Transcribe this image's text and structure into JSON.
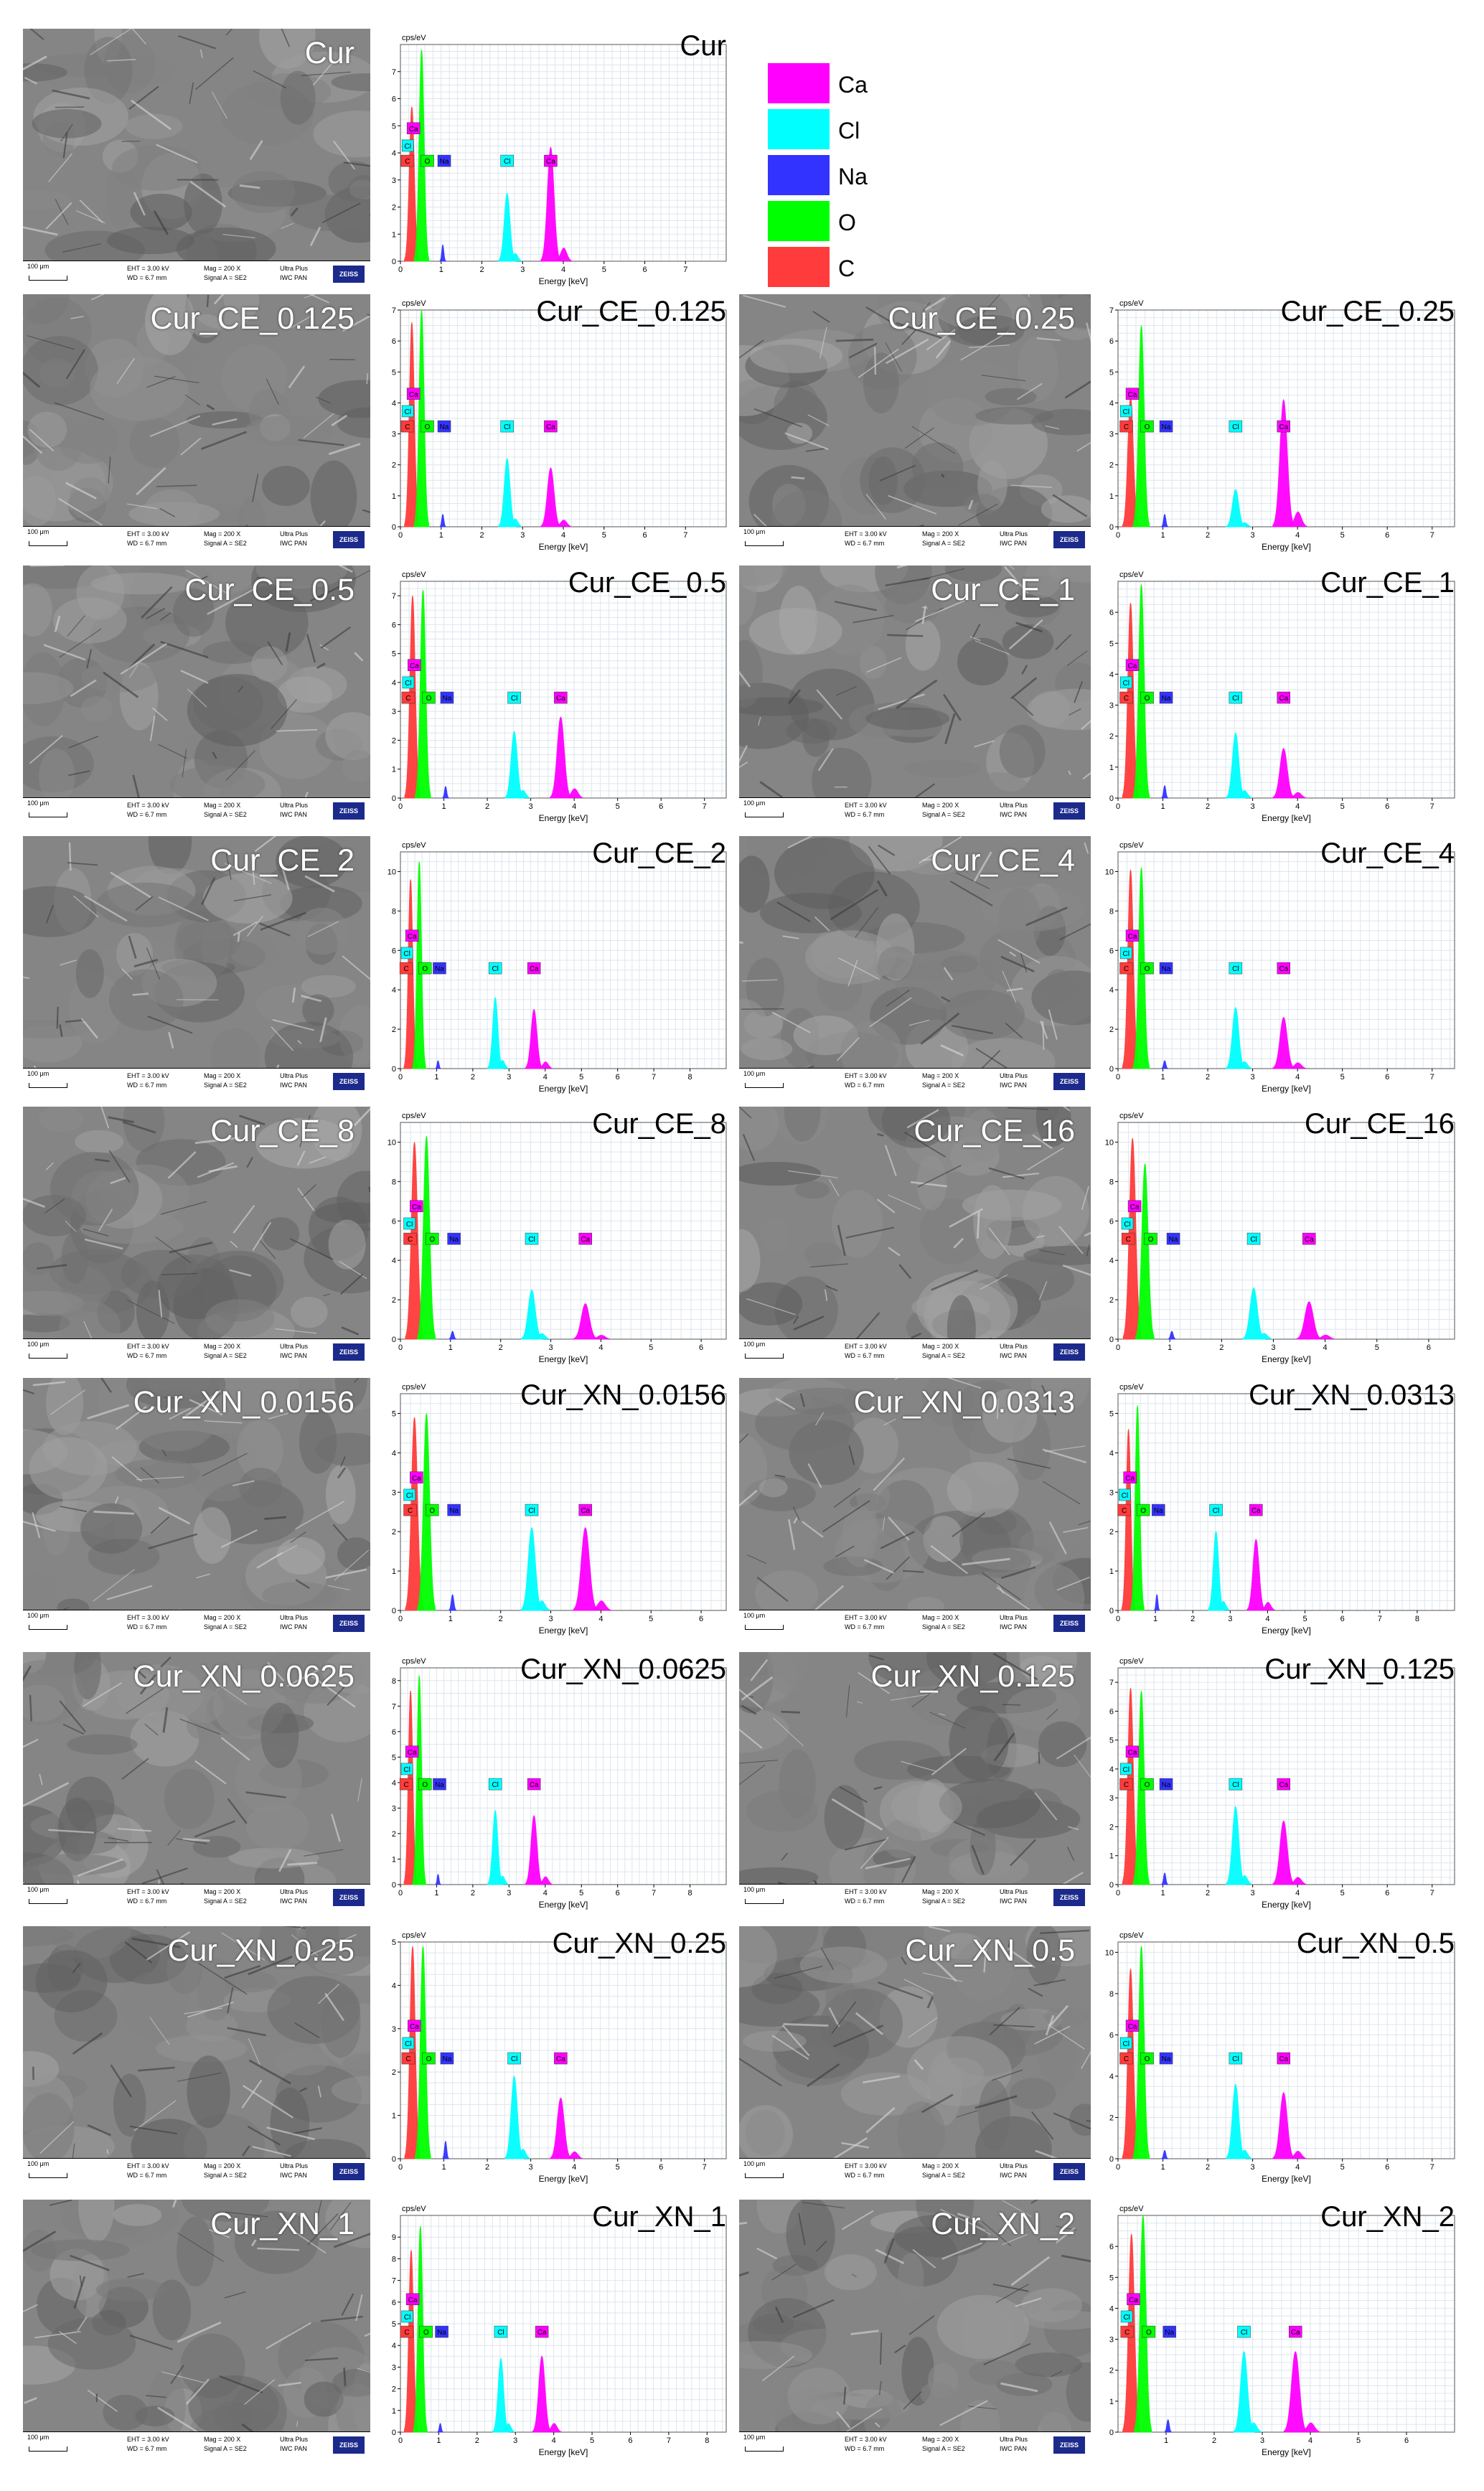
{
  "legend": [
    {
      "element": "Ca",
      "color": "#ff00ff"
    },
    {
      "element": "Cl",
      "color": "#00ffff"
    },
    {
      "element": "Na",
      "color": "#3333ff"
    },
    {
      "element": "O",
      "color": "#00ff00"
    },
    {
      "element": "C",
      "color": "#ff3b3b"
    }
  ],
  "sem_databar": {
    "scale": "100 μm",
    "eht": "EHT = 3.00 kV",
    "wd": "WD = 6.7 mm",
    "mag": "Mag = 200 X",
    "signal": "Signal A = SE2",
    "instrument": "Ultra Plus",
    "institution": "IWC PAN",
    "logo": "ZEISS"
  },
  "spectrum_common": {
    "y_unit": "cps/eV",
    "x_axis_label": "Energy [keV]"
  },
  "chart_data": [
    {
      "type": "area",
      "title": "Cur",
      "ylim": [
        0,
        8
      ],
      "xlim": [
        0,
        8
      ],
      "x_ticks": [
        0,
        1,
        2,
        3,
        4,
        5,
        6,
        7
      ],
      "y_ticks": [
        0,
        1,
        2,
        3,
        4,
        5,
        6,
        7
      ],
      "peaks": [
        {
          "element": "C",
          "x": 0.28,
          "y": 5.7
        },
        {
          "element": "O",
          "x": 0.52,
          "y": 7.8
        },
        {
          "element": "Na",
          "x": 1.04,
          "y": 0.6
        },
        {
          "element": "Cl",
          "x": 2.62,
          "y": 2.5
        },
        {
          "element": "Ca",
          "x": 3.69,
          "y": 4.2
        }
      ]
    },
    {
      "type": "area",
      "title": "Cur_CE_0.125",
      "ylim": [
        0,
        7
      ],
      "xlim": [
        0,
        8
      ],
      "x_ticks": [
        0,
        1,
        2,
        3,
        4,
        5,
        6,
        7
      ],
      "y_ticks": [
        0,
        1,
        2,
        3,
        4,
        5,
        6,
        7
      ],
      "peaks": [
        {
          "element": "C",
          "x": 0.28,
          "y": 6.6
        },
        {
          "element": "O",
          "x": 0.52,
          "y": 7.0
        },
        {
          "element": "Na",
          "x": 1.04,
          "y": 0.4
        },
        {
          "element": "Cl",
          "x": 2.62,
          "y": 2.2
        },
        {
          "element": "Ca",
          "x": 3.69,
          "y": 1.9
        }
      ]
    },
    {
      "type": "area",
      "title": "Cur_CE_0.25",
      "ylim": [
        0,
        7
      ],
      "xlim": [
        0,
        7.5
      ],
      "x_ticks": [
        0,
        1,
        2,
        3,
        4,
        5,
        6,
        7
      ],
      "y_ticks": [
        0,
        1,
        2,
        3,
        4,
        5,
        6,
        7
      ],
      "peaks": [
        {
          "element": "C",
          "x": 0.28,
          "y": 4.2
        },
        {
          "element": "O",
          "x": 0.52,
          "y": 6.5
        },
        {
          "element": "Na",
          "x": 1.04,
          "y": 0.4
        },
        {
          "element": "Cl",
          "x": 2.62,
          "y": 1.2
        },
        {
          "element": "Ca",
          "x": 3.69,
          "y": 4.1
        }
      ]
    },
    {
      "type": "area",
      "title": "Cur_CE_0.5",
      "ylim": [
        0,
        7.5
      ],
      "xlim": [
        0,
        7.5
      ],
      "x_ticks": [
        0,
        1,
        2,
        3,
        4,
        5,
        6,
        7
      ],
      "y_ticks": [
        0,
        1,
        2,
        3,
        4,
        5,
        6,
        7
      ],
      "peaks": [
        {
          "element": "C",
          "x": 0.28,
          "y": 7.0
        },
        {
          "element": "O",
          "x": 0.52,
          "y": 7.2
        },
        {
          "element": "Na",
          "x": 1.04,
          "y": 0.4
        },
        {
          "element": "Cl",
          "x": 2.62,
          "y": 2.3
        },
        {
          "element": "Ca",
          "x": 3.69,
          "y": 2.8
        }
      ]
    },
    {
      "type": "area",
      "title": "Cur_CE_1",
      "ylim": [
        0,
        7
      ],
      "xlim": [
        0,
        7.5
      ],
      "x_ticks": [
        0,
        1,
        2,
        3,
        4,
        5,
        6,
        7
      ],
      "y_ticks": [
        0,
        1,
        2,
        3,
        4,
        5,
        6
      ],
      "peaks": [
        {
          "element": "C",
          "x": 0.28,
          "y": 6.3
        },
        {
          "element": "O",
          "x": 0.52,
          "y": 6.9
        },
        {
          "element": "Na",
          "x": 1.04,
          "y": 0.4
        },
        {
          "element": "Cl",
          "x": 2.62,
          "y": 2.1
        },
        {
          "element": "Ca",
          "x": 3.69,
          "y": 1.6
        }
      ]
    },
    {
      "type": "area",
      "title": "Cur_CE_2",
      "ylim": [
        0,
        11
      ],
      "xlim": [
        0,
        9
      ],
      "x_ticks": [
        0,
        1,
        2,
        3,
        4,
        5,
        6,
        7,
        8
      ],
      "y_ticks": [
        0,
        2,
        4,
        6,
        8,
        10
      ],
      "peaks": [
        {
          "element": "C",
          "x": 0.28,
          "y": 9.6
        },
        {
          "element": "O",
          "x": 0.52,
          "y": 10.5
        },
        {
          "element": "Na",
          "x": 1.04,
          "y": 0.4
        },
        {
          "element": "Cl",
          "x": 2.62,
          "y": 3.6
        },
        {
          "element": "Ca",
          "x": 3.69,
          "y": 3.0
        }
      ]
    },
    {
      "type": "area",
      "title": "Cur_CE_4",
      "ylim": [
        0,
        11
      ],
      "xlim": [
        0,
        7.5
      ],
      "x_ticks": [
        0,
        1,
        2,
        3,
        4,
        5,
        6,
        7
      ],
      "y_ticks": [
        0,
        2,
        4,
        6,
        8,
        10
      ],
      "peaks": [
        {
          "element": "C",
          "x": 0.28,
          "y": 10.1
        },
        {
          "element": "O",
          "x": 0.52,
          "y": 10.2
        },
        {
          "element": "Na",
          "x": 1.04,
          "y": 0.4
        },
        {
          "element": "Cl",
          "x": 2.62,
          "y": 3.1
        },
        {
          "element": "Ca",
          "x": 3.69,
          "y": 2.6
        }
      ]
    },
    {
      "type": "area",
      "title": "Cur_CE_8",
      "ylim": [
        0,
        11
      ],
      "xlim": [
        0,
        6.5
      ],
      "x_ticks": [
        0,
        1,
        2,
        3,
        4,
        5,
        6
      ],
      "y_ticks": [
        0,
        2,
        4,
        6,
        8,
        10
      ],
      "peaks": [
        {
          "element": "C",
          "x": 0.28,
          "y": 10.0
        },
        {
          "element": "O",
          "x": 0.52,
          "y": 10.3
        },
        {
          "element": "Na",
          "x": 1.04,
          "y": 0.4
        },
        {
          "element": "Cl",
          "x": 2.62,
          "y": 2.5
        },
        {
          "element": "Ca",
          "x": 3.69,
          "y": 1.8
        }
      ]
    },
    {
      "type": "area",
      "title": "Cur_CE_16",
      "ylim": [
        0,
        11
      ],
      "xlim": [
        0,
        6.5
      ],
      "x_ticks": [
        0,
        1,
        2,
        3,
        4,
        5,
        6
      ],
      "y_ticks": [
        0,
        2,
        4,
        6,
        8,
        10
      ],
      "peaks": [
        {
          "element": "C",
          "x": 0.28,
          "y": 10.2
        },
        {
          "element": "O",
          "x": 0.52,
          "y": 8.9
        },
        {
          "element": "Na",
          "x": 1.04,
          "y": 0.4
        },
        {
          "element": "Cl",
          "x": 2.62,
          "y": 2.6
        },
        {
          "element": "Ca",
          "x": 3.69,
          "y": 1.9
        }
      ]
    },
    {
      "type": "area",
      "title": "Cur_XN_0.0156",
      "ylim": [
        0,
        5.5
      ],
      "xlim": [
        0,
        6.5
      ],
      "x_ticks": [
        0,
        1,
        2,
        3,
        4,
        5,
        6
      ],
      "y_ticks": [
        0,
        1,
        2,
        3,
        4,
        5
      ],
      "peaks": [
        {
          "element": "C",
          "x": 0.28,
          "y": 4.9
        },
        {
          "element": "O",
          "x": 0.52,
          "y": 5.0
        },
        {
          "element": "Na",
          "x": 1.04,
          "y": 0.4
        },
        {
          "element": "Cl",
          "x": 2.62,
          "y": 2.1
        },
        {
          "element": "Ca",
          "x": 3.69,
          "y": 2.1
        }
      ]
    },
    {
      "type": "area",
      "title": "Cur_XN_0.0313",
      "ylim": [
        0,
        5.5
      ],
      "xlim": [
        0,
        9
      ],
      "x_ticks": [
        0,
        1,
        2,
        3,
        4,
        5,
        6,
        7,
        8
      ],
      "y_ticks": [
        0,
        1,
        2,
        3,
        4,
        5
      ],
      "peaks": [
        {
          "element": "C",
          "x": 0.28,
          "y": 4.6
        },
        {
          "element": "O",
          "x": 0.52,
          "y": 5.2
        },
        {
          "element": "Na",
          "x": 1.04,
          "y": 0.4
        },
        {
          "element": "Cl",
          "x": 2.62,
          "y": 2.0
        },
        {
          "element": "Ca",
          "x": 3.69,
          "y": 1.8
        }
      ]
    },
    {
      "type": "area",
      "title": "Cur_XN_0.0625",
      "ylim": [
        0,
        8.5
      ],
      "xlim": [
        0,
        9
      ],
      "x_ticks": [
        0,
        1,
        2,
        3,
        4,
        5,
        6,
        7,
        8
      ],
      "y_ticks": [
        0,
        1,
        2,
        3,
        4,
        5,
        6,
        7,
        8
      ],
      "peaks": [
        {
          "element": "C",
          "x": 0.28,
          "y": 7.6
        },
        {
          "element": "O",
          "x": 0.52,
          "y": 8.2
        },
        {
          "element": "Na",
          "x": 1.04,
          "y": 0.4
        },
        {
          "element": "Cl",
          "x": 2.62,
          "y": 2.9
        },
        {
          "element": "Ca",
          "x": 3.69,
          "y": 2.7
        }
      ]
    },
    {
      "type": "area",
      "title": "Cur_XN_0.125",
      "ylim": [
        0,
        7.5
      ],
      "xlim": [
        0,
        7.5
      ],
      "x_ticks": [
        0,
        1,
        2,
        3,
        4,
        5,
        6,
        7
      ],
      "y_ticks": [
        0,
        1,
        2,
        3,
        4,
        5,
        6,
        7
      ],
      "peaks": [
        {
          "element": "C",
          "x": 0.28,
          "y": 6.8
        },
        {
          "element": "O",
          "x": 0.52,
          "y": 6.7
        },
        {
          "element": "Na",
          "x": 1.04,
          "y": 0.4
        },
        {
          "element": "Cl",
          "x": 2.62,
          "y": 2.7
        },
        {
          "element": "Ca",
          "x": 3.69,
          "y": 2.2
        }
      ]
    },
    {
      "type": "area",
      "title": "Cur_XN_0.25",
      "ylim": [
        0,
        5
      ],
      "xlim": [
        0,
        7.5
      ],
      "x_ticks": [
        0,
        1,
        2,
        3,
        4,
        5,
        6,
        7
      ],
      "y_ticks": [
        0,
        1,
        2,
        3,
        4,
        5
      ],
      "peaks": [
        {
          "element": "C",
          "x": 0.28,
          "y": 4.9
        },
        {
          "element": "O",
          "x": 0.52,
          "y": 4.9
        },
        {
          "element": "Na",
          "x": 1.04,
          "y": 0.4
        },
        {
          "element": "Cl",
          "x": 2.62,
          "y": 1.9
        },
        {
          "element": "Ca",
          "x": 3.69,
          "y": 1.4
        }
      ]
    },
    {
      "type": "area",
      "title": "Cur_XN_0.5",
      "ylim": [
        0,
        10.5
      ],
      "xlim": [
        0,
        7.5
      ],
      "x_ticks": [
        0,
        1,
        2,
        3,
        4,
        5,
        6,
        7
      ],
      "y_ticks": [
        0,
        2,
        4,
        6,
        8,
        10
      ],
      "peaks": [
        {
          "element": "C",
          "x": 0.28,
          "y": 9.2
        },
        {
          "element": "O",
          "x": 0.52,
          "y": 10.3
        },
        {
          "element": "Na",
          "x": 1.04,
          "y": 0.4
        },
        {
          "element": "Cl",
          "x": 2.62,
          "y": 3.6
        },
        {
          "element": "Ca",
          "x": 3.69,
          "y": 3.2
        }
      ]
    },
    {
      "type": "area",
      "title": "Cur_XN_1",
      "ylim": [
        0,
        10
      ],
      "xlim": [
        0,
        8.5
      ],
      "x_ticks": [
        0,
        1,
        2,
        3,
        4,
        5,
        6,
        7,
        8
      ],
      "y_ticks": [
        0,
        1,
        2,
        3,
        4,
        5,
        6,
        7,
        8,
        9
      ],
      "peaks": [
        {
          "element": "C",
          "x": 0.28,
          "y": 8.4
        },
        {
          "element": "O",
          "x": 0.52,
          "y": 9.5
        },
        {
          "element": "Na",
          "x": 1.04,
          "y": 0.4
        },
        {
          "element": "Cl",
          "x": 2.62,
          "y": 3.4
        },
        {
          "element": "Ca",
          "x": 3.69,
          "y": 3.5
        }
      ]
    },
    {
      "type": "area",
      "title": "Cur_XN_2",
      "ylim": [
        0,
        7
      ],
      "xlim": [
        0,
        7
      ],
      "x_ticks": [
        1,
        2,
        3,
        4,
        5,
        6
      ],
      "y_ticks": [
        0,
        1,
        2,
        3,
        4,
        5,
        6
      ],
      "peaks": [
        {
          "element": "C",
          "x": 0.28,
          "y": 6.4
        },
        {
          "element": "O",
          "x": 0.52,
          "y": 7.0
        },
        {
          "element": "Na",
          "x": 1.04,
          "y": 0.4
        },
        {
          "element": "Cl",
          "x": 2.62,
          "y": 2.6
        },
        {
          "element": "Ca",
          "x": 3.69,
          "y": 2.6
        }
      ]
    }
  ]
}
